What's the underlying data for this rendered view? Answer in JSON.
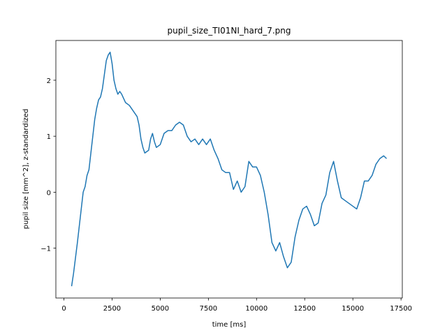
{
  "chart_data": {
    "type": "line",
    "title": "pupil_size_TI01NI_hard_7.png",
    "xlabel": "time [ms]",
    "ylabel": "pupil size [mm^2], z-standardized",
    "color": "#1f77b4",
    "grid": false,
    "x": [
      400,
      500,
      700,
      900,
      1000,
      1100,
      1200,
      1300,
      1400,
      1500,
      1600,
      1700,
      1800,
      1900,
      2000,
      2100,
      2200,
      2300,
      2400,
      2500,
      2600,
      2700,
      2800,
      2900,
      3000,
      3200,
      3400,
      3600,
      3800,
      3900,
      4000,
      4100,
      4200,
      4400,
      4500,
      4600,
      4700,
      4800,
      5000,
      5200,
      5400,
      5600,
      5800,
      6000,
      6200,
      6400,
      6600,
      6800,
      7000,
      7200,
      7400,
      7600,
      7800,
      8000,
      8200,
      8400,
      8600,
      8800,
      9000,
      9200,
      9400,
      9600,
      9800,
      10000,
      10200,
      10400,
      10600,
      10800,
      11000,
      11200,
      11400,
      11600,
      11800,
      12000,
      12200,
      12400,
      12600,
      12800,
      13000,
      13200,
      13400,
      13600,
      13800,
      14000,
      14200,
      14400,
      14600,
      14800,
      15000,
      15200,
      15400,
      15600,
      15800,
      16000,
      16200,
      16400,
      16600,
      16750
    ],
    "values": [
      -1.68,
      -1.45,
      -0.9,
      -0.3,
      0.0,
      0.1,
      0.3,
      0.4,
      0.7,
      1.0,
      1.3,
      1.5,
      1.65,
      1.7,
      1.85,
      2.1,
      2.35,
      2.45,
      2.5,
      2.3,
      2.0,
      1.85,
      1.75,
      1.8,
      1.75,
      1.6,
      1.55,
      1.45,
      1.35,
      1.2,
      0.95,
      0.8,
      0.7,
      0.75,
      0.95,
      1.05,
      0.9,
      0.8,
      0.85,
      1.05,
      1.1,
      1.1,
      1.2,
      1.25,
      1.2,
      1.0,
      0.9,
      0.95,
      0.85,
      0.95,
      0.85,
      0.95,
      0.75,
      0.6,
      0.4,
      0.35,
      0.35,
      0.05,
      0.2,
      0.0,
      0.1,
      0.55,
      0.45,
      0.45,
      0.3,
      0.0,
      -0.4,
      -0.9,
      -1.05,
      -0.9,
      -1.15,
      -1.35,
      -1.25,
      -0.8,
      -0.5,
      -0.3,
      -0.25,
      -0.4,
      -0.6,
      -0.55,
      -0.2,
      -0.05,
      0.35,
      0.55,
      0.2,
      -0.1,
      -0.15,
      -0.2,
      -0.25,
      -0.3,
      -0.1,
      0.2,
      0.2,
      0.3,
      0.5,
      0.6,
      0.65,
      0.6
    ],
    "xlim": [
      -417,
      17567
    ],
    "ylim": [
      -1.89,
      2.71
    ],
    "xticks": [
      0,
      2500,
      5000,
      7500,
      10000,
      12500,
      15000,
      17500
    ],
    "yticks": [
      {
        "value": -1,
        "label": "−1"
      },
      0,
      1,
      2
    ]
  }
}
